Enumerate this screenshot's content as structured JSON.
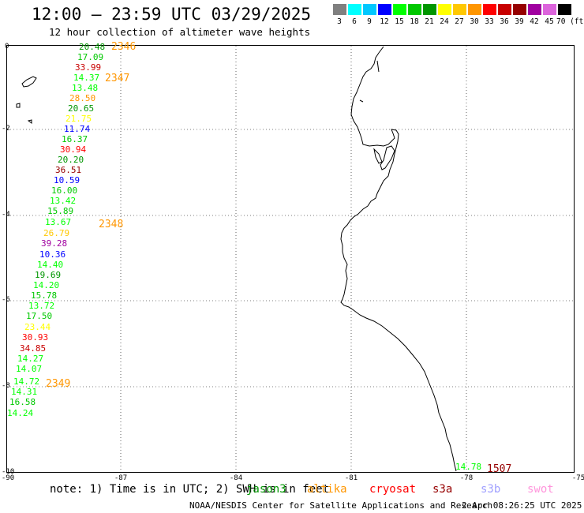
{
  "header": {
    "title": "12:00 – 23:59 UTC 03/29/2025",
    "subtitle": "12 hour collection of altimeter wave heights"
  },
  "color_scale": {
    "labels": [
      "3",
      "6",
      "9",
      "12",
      "15",
      "18",
      "21",
      "24",
      "27",
      "30",
      "33",
      "36",
      "39",
      "42",
      "45",
      "70 (ft)"
    ],
    "colors": [
      "#808080",
      "#00ffff",
      "#00c8ff",
      "#0000ff",
      "#00ff00",
      "#00c800",
      "#009600",
      "#ffff00",
      "#ffc800",
      "#ff9600",
      "#ff0000",
      "#c80000",
      "#960000",
      "#a000a0",
      "#dc64dc",
      "#000000"
    ]
  },
  "map": {
    "lat_labels": [
      "0",
      "-2",
      "-4",
      "-6",
      "-8",
      "-10"
    ],
    "lon_labels": [
      "-90",
      "-87",
      "-84",
      "-81",
      "-78",
      "-75"
    ]
  },
  "observations": [
    {
      "value": "20.48",
      "color": "#009600"
    },
    {
      "value": "17.09",
      "color": "#00c800"
    },
    {
      "value": "33.99",
      "color": "#c80000"
    },
    {
      "value": "14.37",
      "color": "#00ff00"
    },
    {
      "value": "13.48",
      "color": "#00ff00"
    },
    {
      "value": "28.50",
      "color": "#ff9600"
    },
    {
      "value": "20.65",
      "color": "#009600"
    },
    {
      "value": "21.75",
      "color": "#ffff00"
    },
    {
      "value": "11.74",
      "color": "#0000ff"
    },
    {
      "value": "16.37",
      "color": "#00c800"
    },
    {
      "value": "30.94",
      "color": "#ff0000"
    },
    {
      "value": "20.20",
      "color": "#009600"
    },
    {
      "value": "36.51",
      "color": "#960000"
    },
    {
      "value": "10.59",
      "color": "#0000ff"
    },
    {
      "value": "16.00",
      "color": "#00c800"
    },
    {
      "value": "13.42",
      "color": "#00ff00"
    },
    {
      "value": "15.89",
      "color": "#00c800"
    },
    {
      "value": "13.67",
      "color": "#00ff00"
    },
    {
      "value": "26.79",
      "color": "#ffc800"
    },
    {
      "value": "39.28",
      "color": "#a000a0"
    },
    {
      "value": "10.36",
      "color": "#0000ff"
    },
    {
      "value": "14.40",
      "color": "#00ff00"
    },
    {
      "value": "19.69",
      "color": "#009600"
    },
    {
      "value": "14.20",
      "color": "#00ff00"
    },
    {
      "value": "15.78",
      "color": "#00c800"
    },
    {
      "value": "13.72",
      "color": "#00ff00"
    },
    {
      "value": "17.50",
      "color": "#00c800"
    },
    {
      "value": "23.44",
      "color": "#ffff00"
    },
    {
      "value": "30.93",
      "color": "#ff0000"
    },
    {
      "value": "34.85",
      "color": "#c80000"
    },
    {
      "value": "14.27",
      "color": "#00ff00"
    },
    {
      "value": "14.07",
      "color": "#00ff00"
    },
    {
      "value": "14.72",
      "color": "#00ff00"
    },
    {
      "value": "14.31",
      "color": "#00ff00"
    },
    {
      "value": "16.58",
      "color": "#00c800"
    },
    {
      "value": "14.24",
      "color": "#00ff00"
    },
    {
      "value": "14.78",
      "color": "#00ff00"
    }
  ],
  "passes": [
    {
      "value": "2346",
      "color": "#ff9600"
    },
    {
      "value": "2347",
      "color": "#ff9600"
    },
    {
      "value": "2348",
      "color": "#ff9600"
    },
    {
      "value": "2349",
      "color": "#ff9600"
    },
    {
      "value": "1507",
      "color": "#960000"
    }
  ],
  "footer": {
    "note": "note:  1) Time is in UTC; 2) SWH is in feet",
    "satellites": [
      {
        "name": "jason3",
        "color": "#009600"
      },
      {
        "name": "altika",
        "color": "#ff9600"
      },
      {
        "name": "cryosat",
        "color": "#ff0000"
      },
      {
        "name": "s3a",
        "color": "#960000"
      },
      {
        "name": "s3b",
        "color": "#a0a0ff"
      },
      {
        "name": "swot",
        "color": "#ff96dc"
      }
    ],
    "credit": "NOAA/NESDIS Center for Satellite Applications and Research",
    "timestamp": "2 Apr 08:26:25 UTC 2025"
  }
}
